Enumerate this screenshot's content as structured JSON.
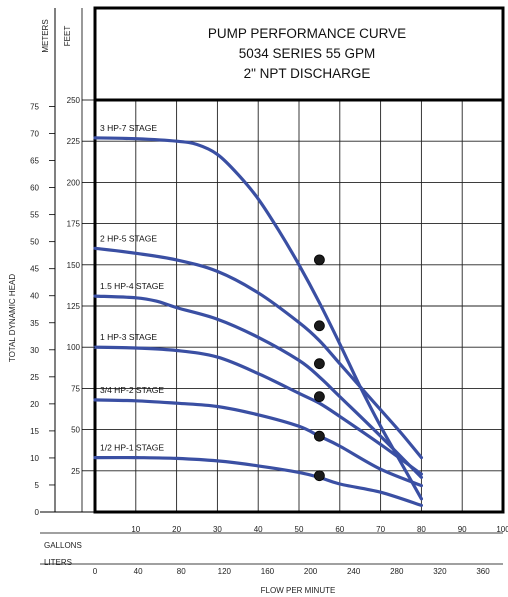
{
  "chart_data": {
    "type": "line",
    "title_lines": [
      "PUMP PERFORMANCE CURVE",
      "5034 SERIES 55 GPM",
      "2\" NPT DISCHARGE"
    ],
    "xlabel": "FLOW PER MINUTE",
    "ylabel": "TOTAL DYNAMIC HEAD",
    "x_axis_gallons": {
      "label": "GALLONS",
      "ticks": [
        10,
        20,
        30,
        40,
        50,
        60,
        70,
        80,
        90,
        100
      ],
      "range": [
        0,
        100
      ]
    },
    "x_axis_liters": {
      "label": "LITERS",
      "ticks": [
        0,
        40,
        80,
        120,
        160,
        200,
        240,
        280,
        320,
        360
      ]
    },
    "y_axis_feet": {
      "label": "FEET",
      "ticks": [
        25,
        50,
        75,
        100,
        125,
        150,
        175,
        200,
        225,
        250
      ],
      "range": [
        0,
        250
      ]
    },
    "y_axis_meters": {
      "label": "METERS",
      "ticks": [
        0,
        5,
        10,
        15,
        20,
        25,
        30,
        35,
        40,
        45,
        50,
        55,
        60,
        65,
        70,
        75
      ]
    },
    "grid": true,
    "series": [
      {
        "name": "3 HP-7 STAGE",
        "points": [
          [
            0,
            227
          ],
          [
            10,
            226.5
          ],
          [
            20,
            225
          ],
          [
            25,
            223
          ],
          [
            30,
            217
          ],
          [
            35,
            205
          ],
          [
            40,
            190
          ],
          [
            45,
            171
          ],
          [
            50,
            150
          ],
          [
            55,
            127
          ],
          [
            60,
            102
          ],
          [
            65,
            76
          ],
          [
            70,
            52
          ],
          [
            75,
            30
          ],
          [
            80,
            8
          ]
        ],
        "marker_x": 55,
        "marker_y": 153
      },
      {
        "name": "2 HP-5 STAGE",
        "points": [
          [
            0,
            160
          ],
          [
            10,
            157
          ],
          [
            20,
            153
          ],
          [
            30,
            146
          ],
          [
            40,
            133
          ],
          [
            50,
            115
          ],
          [
            55,
            104
          ],
          [
            60,
            90
          ],
          [
            65,
            76
          ],
          [
            70,
            62
          ],
          [
            75,
            48
          ],
          [
            80,
            33
          ]
        ],
        "marker_x": 55,
        "marker_y": 113
      },
      {
        "name": "1.5 HP-4 STAGE",
        "points": [
          [
            0,
            131
          ],
          [
            10,
            130
          ],
          [
            15,
            128
          ],
          [
            20,
            124
          ],
          [
            30,
            117
          ],
          [
            40,
            106
          ],
          [
            50,
            92
          ],
          [
            55,
            82
          ],
          [
            60,
            70
          ],
          [
            70,
            46
          ],
          [
            80,
            21
          ]
        ],
        "marker_x": 55,
        "marker_y": 90
      },
      {
        "name": "1 HP-3 STAGE",
        "points": [
          [
            0,
            100
          ],
          [
            10,
            99.5
          ],
          [
            20,
            98
          ],
          [
            30,
            94
          ],
          [
            40,
            84
          ],
          [
            50,
            72
          ],
          [
            55,
            66
          ],
          [
            60,
            58
          ],
          [
            70,
            41
          ],
          [
            80,
            23
          ]
        ],
        "marker_x": 55,
        "marker_y": 70
      },
      {
        "name": "3/4 HP-2 STAGE",
        "points": [
          [
            0,
            68
          ],
          [
            10,
            67.5
          ],
          [
            20,
            66
          ],
          [
            30,
            64
          ],
          [
            40,
            59
          ],
          [
            50,
            52
          ],
          [
            55,
            46
          ],
          [
            60,
            40
          ],
          [
            70,
            26
          ],
          [
            80,
            16
          ]
        ],
        "marker_x": 55,
        "marker_y": 46
      },
      {
        "name": "1/2 HP-1 STAGE",
        "points": [
          [
            0,
            33
          ],
          [
            10,
            33
          ],
          [
            20,
            32.5
          ],
          [
            30,
            31
          ],
          [
            40,
            28
          ],
          [
            50,
            24
          ],
          [
            55,
            21
          ],
          [
            60,
            17
          ],
          [
            70,
            12
          ],
          [
            80,
            4
          ]
        ],
        "marker_x": 55,
        "marker_y": 22
      }
    ]
  }
}
